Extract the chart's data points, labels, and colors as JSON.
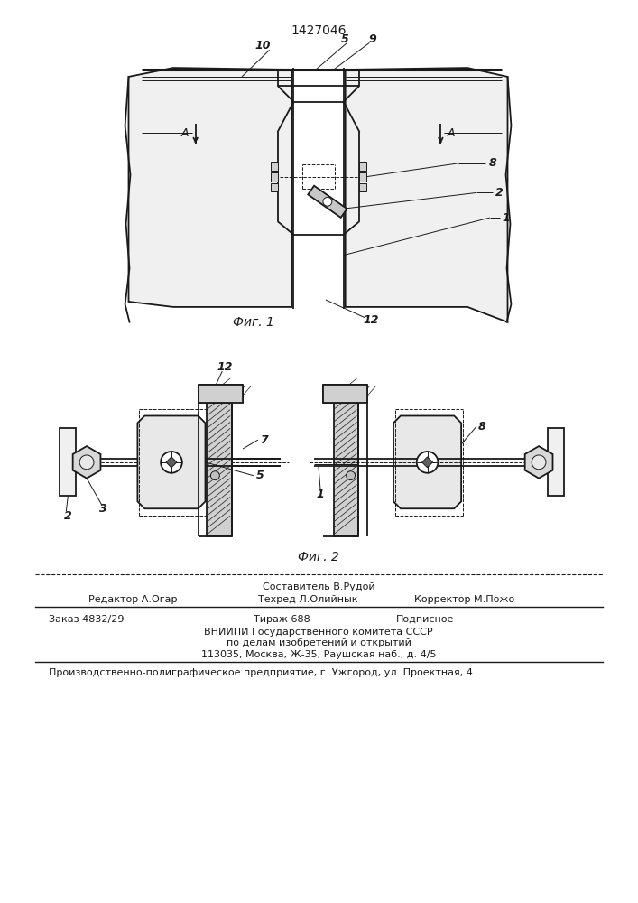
{
  "title": "1427046",
  "fig1_caption": "Фиг. 1",
  "fig2_caption": "Фиг. 2",
  "bg_color": "#ffffff",
  "line_color": "#1a1a1a",
  "footer_line0": "Составитель В.Рудой",
  "footer_line1_left": "Редактор А.Огар",
  "footer_line1_center": "Техред Л.Олийнык",
  "footer_line1_right": "Корректор М.Пожо",
  "footer_line2_left": "Заказ 4832/29",
  "footer_line2_center": "Тираж 688",
  "footer_line2_right": "Подписное",
  "footer_line3": "ВНИИПИ Государственного комитета СССР",
  "footer_line4": "по делам изобретений и открытий",
  "footer_line5": "113035, Москва, Ж-35, Раушская наб., д. 4/5",
  "footer_line6": "Производственно-полиграфическое предприятие, г. Ужгород, ул. Проектная, 4"
}
